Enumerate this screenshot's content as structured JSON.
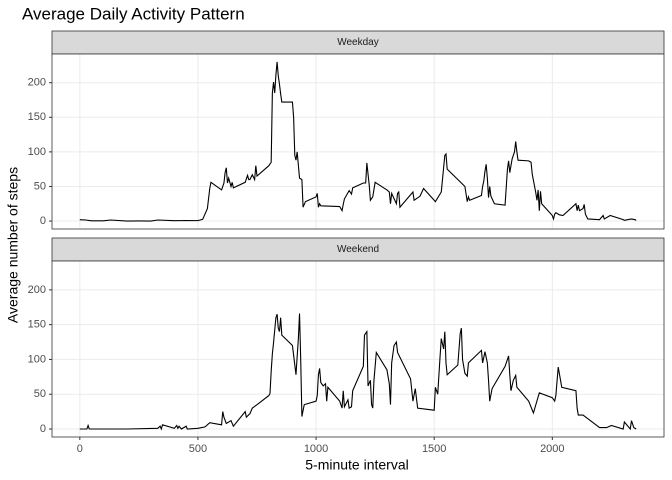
{
  "title": "Average Daily Activity Pattern",
  "x_label": "5-minute interval",
  "y_label": "Average number of steps",
  "chart_data": [
    {
      "type": "line",
      "facet": "Weekday",
      "grid": true,
      "color": "#000000",
      "xlim": [
        -117.75,
        2472.75
      ],
      "xticks": [
        0,
        500,
        1000,
        1500,
        2000
      ],
      "ylim": [
        -11.5,
        241.5
      ],
      "yticks": [
        0,
        50,
        100,
        150,
        200
      ],
      "x": [
        0,
        25,
        50,
        100,
        130,
        200,
        250,
        300,
        330,
        400,
        450,
        500,
        520,
        540,
        550,
        555,
        600,
        610,
        615,
        620,
        625,
        630,
        640,
        645,
        650,
        700,
        710,
        715,
        720,
        730,
        740,
        745,
        750,
        800,
        810,
        815,
        820,
        825,
        830,
        835,
        840,
        845,
        850,
        855,
        900,
        905,
        910,
        915,
        920,
        930,
        940,
        945,
        955,
        1000,
        1005,
        1010,
        1015,
        1020,
        1100,
        1110,
        1115,
        1120,
        1140,
        1150,
        1155,
        1200,
        1210,
        1215,
        1220,
        1225,
        1230,
        1240,
        1250,
        1300,
        1310,
        1315,
        1320,
        1340,
        1345,
        1350,
        1355,
        1400,
        1410,
        1415,
        1440,
        1455,
        1500,
        1505,
        1530,
        1545,
        1550,
        1555,
        1600,
        1630,
        1640,
        1645,
        1650,
        1700,
        1705,
        1710,
        1715,
        1720,
        1725,
        1730,
        1735,
        1740,
        1755,
        1800,
        1810,
        1815,
        1820,
        1830,
        1840,
        1845,
        1850,
        1855,
        1900,
        1910,
        1915,
        1930,
        1935,
        1940,
        1945,
        1950,
        1955,
        2000,
        2005,
        2010,
        2015,
        2030,
        2045,
        2100,
        2105,
        2110,
        2115,
        2130,
        2135,
        2140,
        2150,
        2200,
        2215,
        2220,
        2245,
        2300,
        2305,
        2335,
        2350,
        2355
      ],
      "values": [
        2,
        1.5,
        0.4,
        0.4,
        1.5,
        0,
        0.1,
        0,
        1.5,
        0.5,
        0.8,
        0.6,
        2.5,
        18,
        47,
        56,
        45,
        55,
        70,
        77,
        55,
        62,
        50,
        56,
        48,
        56,
        66,
        60,
        60,
        67,
        60,
        80,
        65,
        80,
        85,
        185,
        201,
        185,
        211,
        230,
        210,
        198,
        184,
        172,
        172,
        150,
        95,
        88,
        100,
        62,
        60,
        20,
        28,
        35,
        40,
        20,
        25,
        22,
        21,
        15,
        24,
        32,
        44,
        39,
        48,
        55,
        55,
        84,
        68,
        52,
        30,
        35,
        56,
        45,
        42,
        25,
        40,
        25,
        40,
        42,
        20,
        38,
        42,
        30,
        36,
        47,
        30,
        28,
        42,
        95,
        97,
        75,
        60,
        50,
        28,
        35,
        30,
        37,
        50,
        58,
        72,
        82,
        62,
        34,
        50,
        36,
        25,
        23,
        75,
        87,
        70,
        90,
        100,
        115,
        100,
        88,
        87,
        85,
        68,
        41,
        30,
        45,
        15,
        43,
        25,
        8,
        3,
        10,
        12,
        9,
        8,
        25,
        15,
        23,
        15,
        18,
        24,
        10,
        3,
        2,
        8,
        3,
        8,
        2,
        1,
        3,
        2,
        1
      ]
    },
    {
      "type": "line",
      "facet": "Weekend",
      "grid": true,
      "color": "#000000",
      "xlim": [
        -117.75,
        2472.75
      ],
      "xticks": [
        0,
        500,
        1000,
        1500,
        2000
      ],
      "ylim": [
        -11.5,
        241.5
      ],
      "yticks": [
        0,
        50,
        100,
        150,
        200
      ],
      "x": [
        0,
        30,
        35,
        40,
        200,
        330,
        340,
        345,
        350,
        400,
        410,
        415,
        420,
        430,
        450,
        455,
        500,
        530,
        550,
        600,
        605,
        610,
        620,
        640,
        650,
        700,
        705,
        720,
        730,
        750,
        800,
        805,
        810,
        815,
        820,
        830,
        835,
        840,
        845,
        850,
        855,
        900,
        915,
        925,
        930,
        935,
        940,
        950,
        1000,
        1005,
        1010,
        1015,
        1020,
        1030,
        1040,
        1045,
        1050,
        1100,
        1110,
        1115,
        1120,
        1135,
        1140,
        1150,
        1155,
        1200,
        1205,
        1215,
        1220,
        1230,
        1235,
        1240,
        1245,
        1255,
        1300,
        1310,
        1315,
        1320,
        1330,
        1340,
        1345,
        1400,
        1410,
        1420,
        1430,
        1500,
        1505,
        1515,
        1525,
        1530,
        1540,
        1545,
        1550,
        1555,
        1600,
        1610,
        1615,
        1620,
        1630,
        1640,
        1645,
        1700,
        1705,
        1715,
        1725,
        1730,
        1735,
        1745,
        1800,
        1815,
        1820,
        1825,
        1835,
        1845,
        1850,
        1900,
        1920,
        1945,
        2000,
        2010,
        2015,
        2025,
        2040,
        2100,
        2105,
        2110,
        2130,
        2200,
        2230,
        2250,
        2300,
        2305,
        2330,
        2335,
        2345,
        2355
      ],
      "values": [
        0,
        0,
        5,
        0,
        0,
        1,
        4,
        0,
        6,
        1,
        5,
        1,
        4,
        0,
        4,
        0,
        1,
        3,
        9,
        6,
        25,
        17,
        8,
        12,
        4,
        25,
        17,
        22,
        30,
        35,
        48,
        51,
        83,
        108,
        124,
        160,
        165,
        145,
        140,
        160,
        135,
        120,
        78,
        130,
        166,
        100,
        18,
        35,
        40,
        48,
        78,
        87,
        67,
        62,
        65,
        40,
        60,
        40,
        30,
        55,
        32,
        42,
        30,
        32,
        55,
        90,
        135,
        140,
        62,
        70,
        35,
        30,
        70,
        110,
        85,
        65,
        35,
        95,
        120,
        125,
        110,
        72,
        40,
        58,
        30,
        27,
        60,
        50,
        105,
        130,
        115,
        140,
        95,
        78,
        92,
        137,
        145,
        100,
        80,
        76,
        95,
        113,
        95,
        111,
        95,
        70,
        40,
        58,
        90,
        105,
        78,
        55,
        70,
        77,
        60,
        40,
        23,
        52,
        45,
        40,
        48,
        89,
        60,
        55,
        30,
        20,
        20,
        2,
        2,
        5,
        0,
        10,
        0,
        12,
        2,
        0
      ]
    }
  ]
}
